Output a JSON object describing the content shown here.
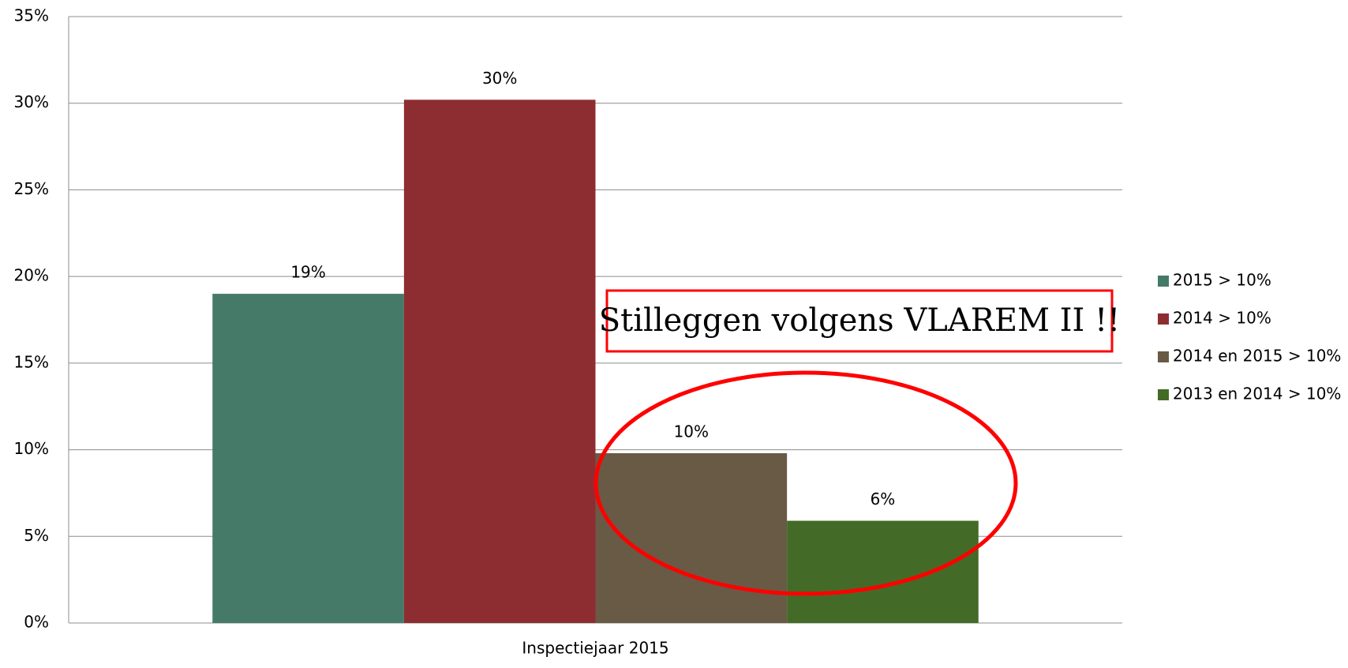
{
  "chart_data": {
    "type": "bar",
    "categories": [
      "Inspectiejaar 2015"
    ],
    "series": [
      {
        "name": "2015 > 10%",
        "color": "#457a69",
        "values": [
          19
        ],
        "value_labels": [
          "19%"
        ]
      },
      {
        "name": "2014 > 10%",
        "color": "#8e2d31",
        "values": [
          30.2
        ],
        "value_labels": [
          "30%"
        ]
      },
      {
        "name": "2014 en 2015 > 10%",
        "color": "#695a45",
        "values": [
          9.8
        ],
        "value_labels": [
          "10%"
        ]
      },
      {
        "name": "2013 en 2014 > 10%",
        "color": "#436b27",
        "values": [
          5.9
        ],
        "value_labels": [
          "6%"
        ]
      }
    ],
    "ylim": [
      0,
      35
    ],
    "yticks": [
      {
        "value": 0,
        "label": "0%"
      },
      {
        "value": 5,
        "label": "5%"
      },
      {
        "value": 10,
        "label": "10%"
      },
      {
        "value": 15,
        "label": "15%"
      },
      {
        "value": 20,
        "label": "20%"
      },
      {
        "value": 25,
        "label": "25%"
      },
      {
        "value": 30,
        "label": "30%"
      },
      {
        "value": 35,
        "label": "35%"
      }
    ],
    "grid": true,
    "legend": "right",
    "annotation": "Stilleggen volgens VLAREM II !!",
    "annotation_color": "#ff0000"
  }
}
